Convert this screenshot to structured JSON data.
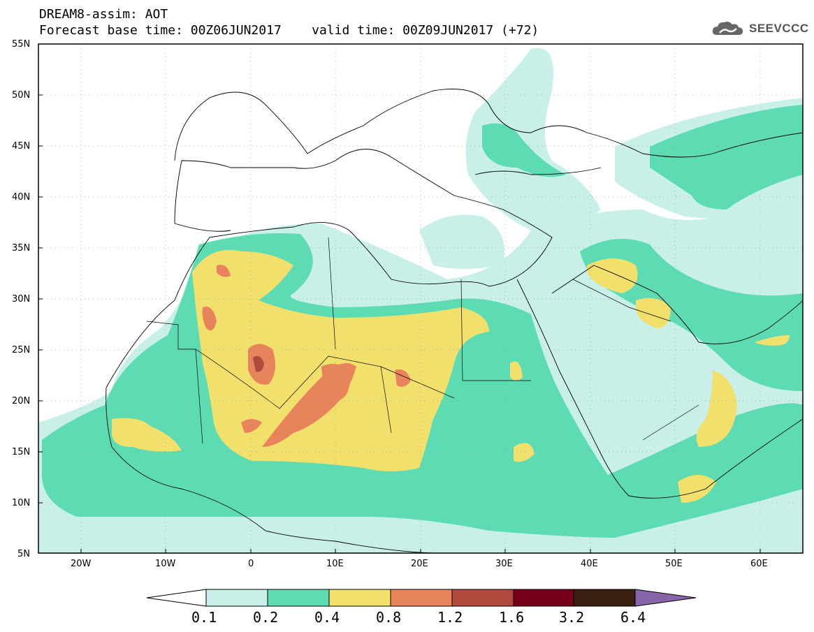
{
  "header": {
    "line1": "DREAM8-assim: AOT",
    "line2": "Forecast base time: 00Z06JUN2017    valid time: 00Z09JUN2017 (+72)",
    "logo": "SEEVCCC"
  },
  "map": {
    "lon_range": [
      -25,
      65
    ],
    "lat_range": [
      5,
      55
    ],
    "gridlines": "dotted",
    "lat_labels": [
      "55N",
      "50N",
      "45N",
      "40N",
      "35N",
      "30N",
      "25N",
      "20N",
      "15N",
      "10N",
      "5N"
    ],
    "lon_labels": [
      "20W",
      "10W",
      "0",
      "10E",
      "20E",
      "30E",
      "40E",
      "50E",
      "60E"
    ]
  },
  "colorbar": {
    "ticks": [
      "0.1",
      "0.2",
      "0.4",
      "0.8",
      "1.2",
      "1.6",
      "3.2",
      "6.4"
    ],
    "colors": [
      "#c8f0e8",
      "#5ddcb4",
      "#f2e06c",
      "#e8845c",
      "#b04a3c",
      "#780018",
      "#3a2010",
      "#8a64a8"
    ],
    "below_color": "#ffffff"
  }
}
